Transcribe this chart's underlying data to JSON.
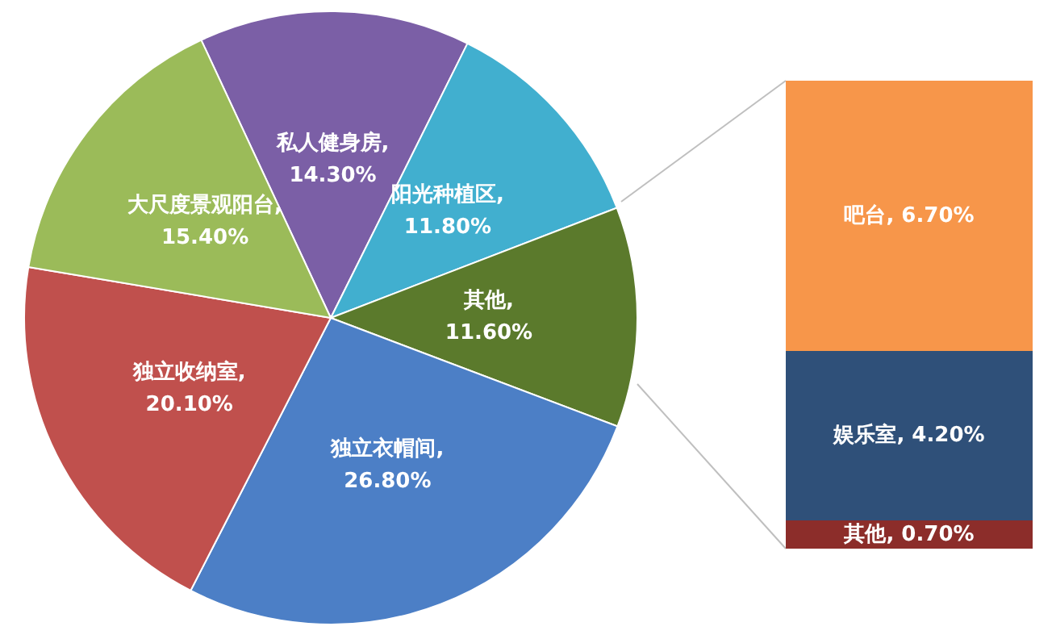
{
  "chart_data": [
    {
      "type": "pie",
      "categories": [
        "私人健身房",
        "阳光种植区",
        "其他",
        "独立衣帽间",
        "独立收纳室",
        "大尺度景观阳台"
      ],
      "values": [
        14.3,
        11.8,
        11.6,
        26.8,
        20.1,
        15.4
      ],
      "value_labels": [
        ",\n14.30%",
        ",\n11.80%",
        ",\n11.60%",
        ",\n26.80%",
        ",\n20.10%",
        ",\n15.40%"
      ],
      "colors": [
        "#7b5fa6",
        "#41afcf",
        "#5b7a2c",
        "#4c7fc6",
        "#c0504d",
        "#9bbb59"
      ],
      "legend": false
    },
    {
      "type": "bar",
      "stacked": true,
      "categories": [
        null
      ],
      "tick_labels": false,
      "legend": false,
      "series": [
        {
          "name": "其他",
          "color": "#8c2d2a",
          "values": [
            0.7
          ],
          "value_labels": [
            ", 0.70%"
          ]
        },
        {
          "name": "娱乐室",
          "color": "#2f5079",
          "values": [
            4.2
          ],
          "value_labels": [
            ", 4.20%"
          ]
        },
        {
          "name": "吧台",
          "color": "#f7964a",
          "values": [
            6.7
          ],
          "value_labels": [
            ", 6.70%"
          ]
        }
      ]
    }
  ]
}
